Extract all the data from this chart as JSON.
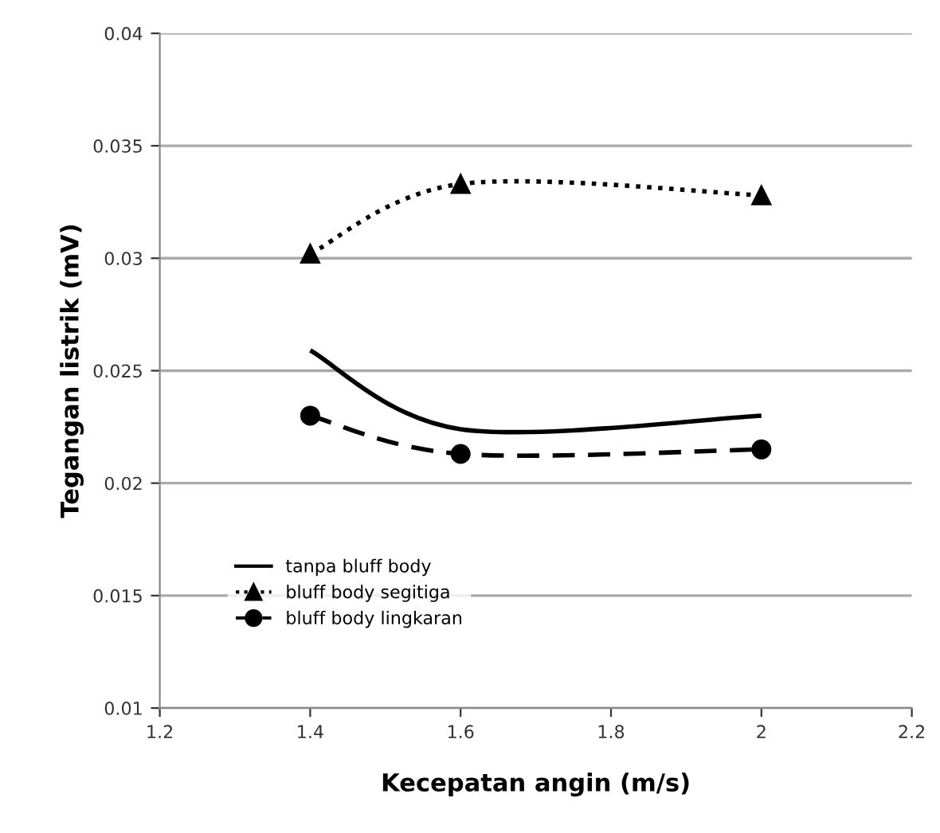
{
  "chart_data": {
    "type": "line",
    "xlabel": "Kecepatan angin (m/s)",
    "ylabel": "Tegangan listrik (mV)",
    "x": [
      1.4,
      1.6,
      2.0
    ],
    "series": [
      {
        "name": "tanpa bluff body",
        "color": "#000000",
        "values": [
          0.0259,
          0.0224,
          0.023
        ],
        "marker": "none",
        "line_style": "solid"
      },
      {
        "name": "bluff body segitiga",
        "color": "#000000",
        "values": [
          0.0302,
          0.0333,
          0.0328
        ],
        "marker": "triangle",
        "line_style": "dotted"
      },
      {
        "name": "bluff body lingkaran",
        "color": "#000000",
        "values": [
          0.023,
          0.0213,
          0.0215
        ],
        "marker": "circle",
        "line_style": "dashed"
      }
    ],
    "xlim": [
      1.2,
      2.2
    ],
    "xticks": [
      1.2,
      1.4,
      1.6,
      1.8,
      2,
      2.2
    ],
    "ylim": [
      0.01,
      0.04
    ],
    "yticks": [
      0.01,
      0.015,
      0.02,
      0.025,
      0.03,
      0.035,
      0.04
    ],
    "grid": "y",
    "legend": "center left"
  }
}
